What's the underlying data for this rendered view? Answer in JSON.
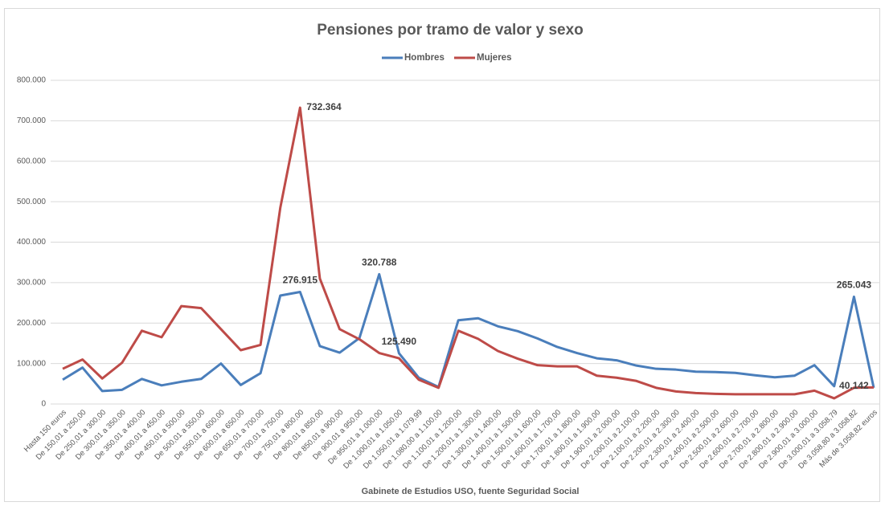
{
  "chart_data": {
    "type": "line",
    "title": "Pensiones por tramo de valor y sexo",
    "source": "Gabinete de Estudios USO, fuente Seguridad Social",
    "categories": [
      "Hasta 150 euros",
      "De 150,01 a 250,00",
      "De 250,01 a 300,00",
      "De 300,01 a 350,00",
      "De 350,01 a 400,00",
      "De 400,01 a 450,00",
      "De 450,01 a 500,00",
      "De 500,01 a 550,00",
      "De 550,01 a 600,00",
      "De 600,01 a 650,00",
      "De 650,01 a 700,00",
      "De 700,01 a 750,00",
      "De 750,01 a 800,00",
      "De 800,01 a 850,00",
      "De 850,01 a 900,00",
      "De 900,01 a 950,00",
      "De 950,01 a 1.000,00",
      "De 1.000,01 a 1.050,00",
      "De 1.050,01 a 1.079,99",
      "De 1.080,00 a 1.100,00",
      "De 1.100,01 a 1.200,00",
      "De 1.200,01 a 1.300,00",
      "De 1.300,01 a 1.400,00",
      "De 1.400,01 a 1.500,00",
      "De 1.500,01 a 1.600,00",
      "De 1.600,01 a 1.700,00",
      "De 1.700,01 a 1.800,00",
      "De 1.800,01 a 1.900,00",
      "De 1.900,01 a 2.000,00",
      "De 2.000,01 a 2.100,00",
      "De 2.100,01 a 2.200,00",
      "De 2.200,01 a 2.300,00",
      "De 2.300,01 a 2.400,00",
      "De 2.400,01 a 2.500,00",
      "De 2.500,01 a 2.600,00",
      "De 2.600,01 a 2.700,00",
      "De 2.700,01 a 2.800,00",
      "De 2.800,01 a 2.900,00",
      "De 2.900,01 a 3.000,00",
      "De 3.000,01 a 3.058,79",
      "De 3.058,80 a 3.058,82",
      "Más de 3.058,82 euros"
    ],
    "series": [
      {
        "name": "Hombres",
        "color": "#4a7ebb",
        "values": [
          60000,
          90000,
          32000,
          35000,
          62000,
          46000,
          55000,
          62000,
          100000,
          47000,
          76000,
          268000,
          276915,
          143000,
          127000,
          163000,
          320788,
          125490,
          65000,
          42000,
          207000,
          212000,
          192000,
          180000,
          162000,
          141000,
          126000,
          113000,
          108000,
          95000,
          87000,
          85000,
          80000,
          79000,
          77000,
          71000,
          66000,
          70000,
          96000,
          44000,
          265043,
          40000
        ],
        "value_labels": [
          null,
          null,
          null,
          null,
          null,
          null,
          null,
          null,
          null,
          null,
          null,
          null,
          "276.915",
          null,
          null,
          null,
          "320.788",
          "125.490",
          null,
          null,
          null,
          null,
          null,
          null,
          null,
          null,
          null,
          null,
          null,
          null,
          null,
          null,
          null,
          null,
          null,
          null,
          null,
          null,
          null,
          null,
          "265.043",
          null
        ]
      },
      {
        "name": "Mujeres",
        "color": "#be4b48",
        "values": [
          87000,
          110000,
          63000,
          102000,
          181000,
          165000,
          242000,
          237000,
          185000,
          133000,
          146000,
          485000,
          732364,
          310000,
          185000,
          160000,
          126000,
          113000,
          60000,
          40000,
          181000,
          161000,
          131000,
          112000,
          96000,
          93000,
          93000,
          70000,
          65000,
          57000,
          40000,
          31000,
          27000,
          25000,
          24000,
          24000,
          24000,
          24000,
          33000,
          14000,
          40142,
          41000
        ],
        "value_labels": [
          null,
          null,
          null,
          null,
          null,
          null,
          null,
          null,
          null,
          null,
          null,
          null,
          "732.364",
          null,
          null,
          null,
          null,
          null,
          null,
          null,
          null,
          null,
          null,
          null,
          null,
          null,
          null,
          null,
          null,
          null,
          null,
          null,
          null,
          null,
          null,
          null,
          null,
          null,
          null,
          null,
          "40.142",
          null
        ]
      }
    ],
    "ylim": [
      0,
      800000
    ],
    "yticks": [
      0,
      {
        "value": 100000,
        "label": "100.000"
      },
      {
        "value": 200000,
        "label": "200.000"
      },
      {
        "value": 300000,
        "label": "300.000"
      },
      {
        "value": 400000,
        "label": "400.000"
      },
      {
        "value": 500000,
        "label": "500.000"
      },
      {
        "value": 600000,
        "label": "600.000"
      },
      {
        "value": 700000,
        "label": "700.000"
      },
      {
        "value": 800000,
        "label": "800.000"
      }
    ],
    "grid": true,
    "legend": "top"
  }
}
